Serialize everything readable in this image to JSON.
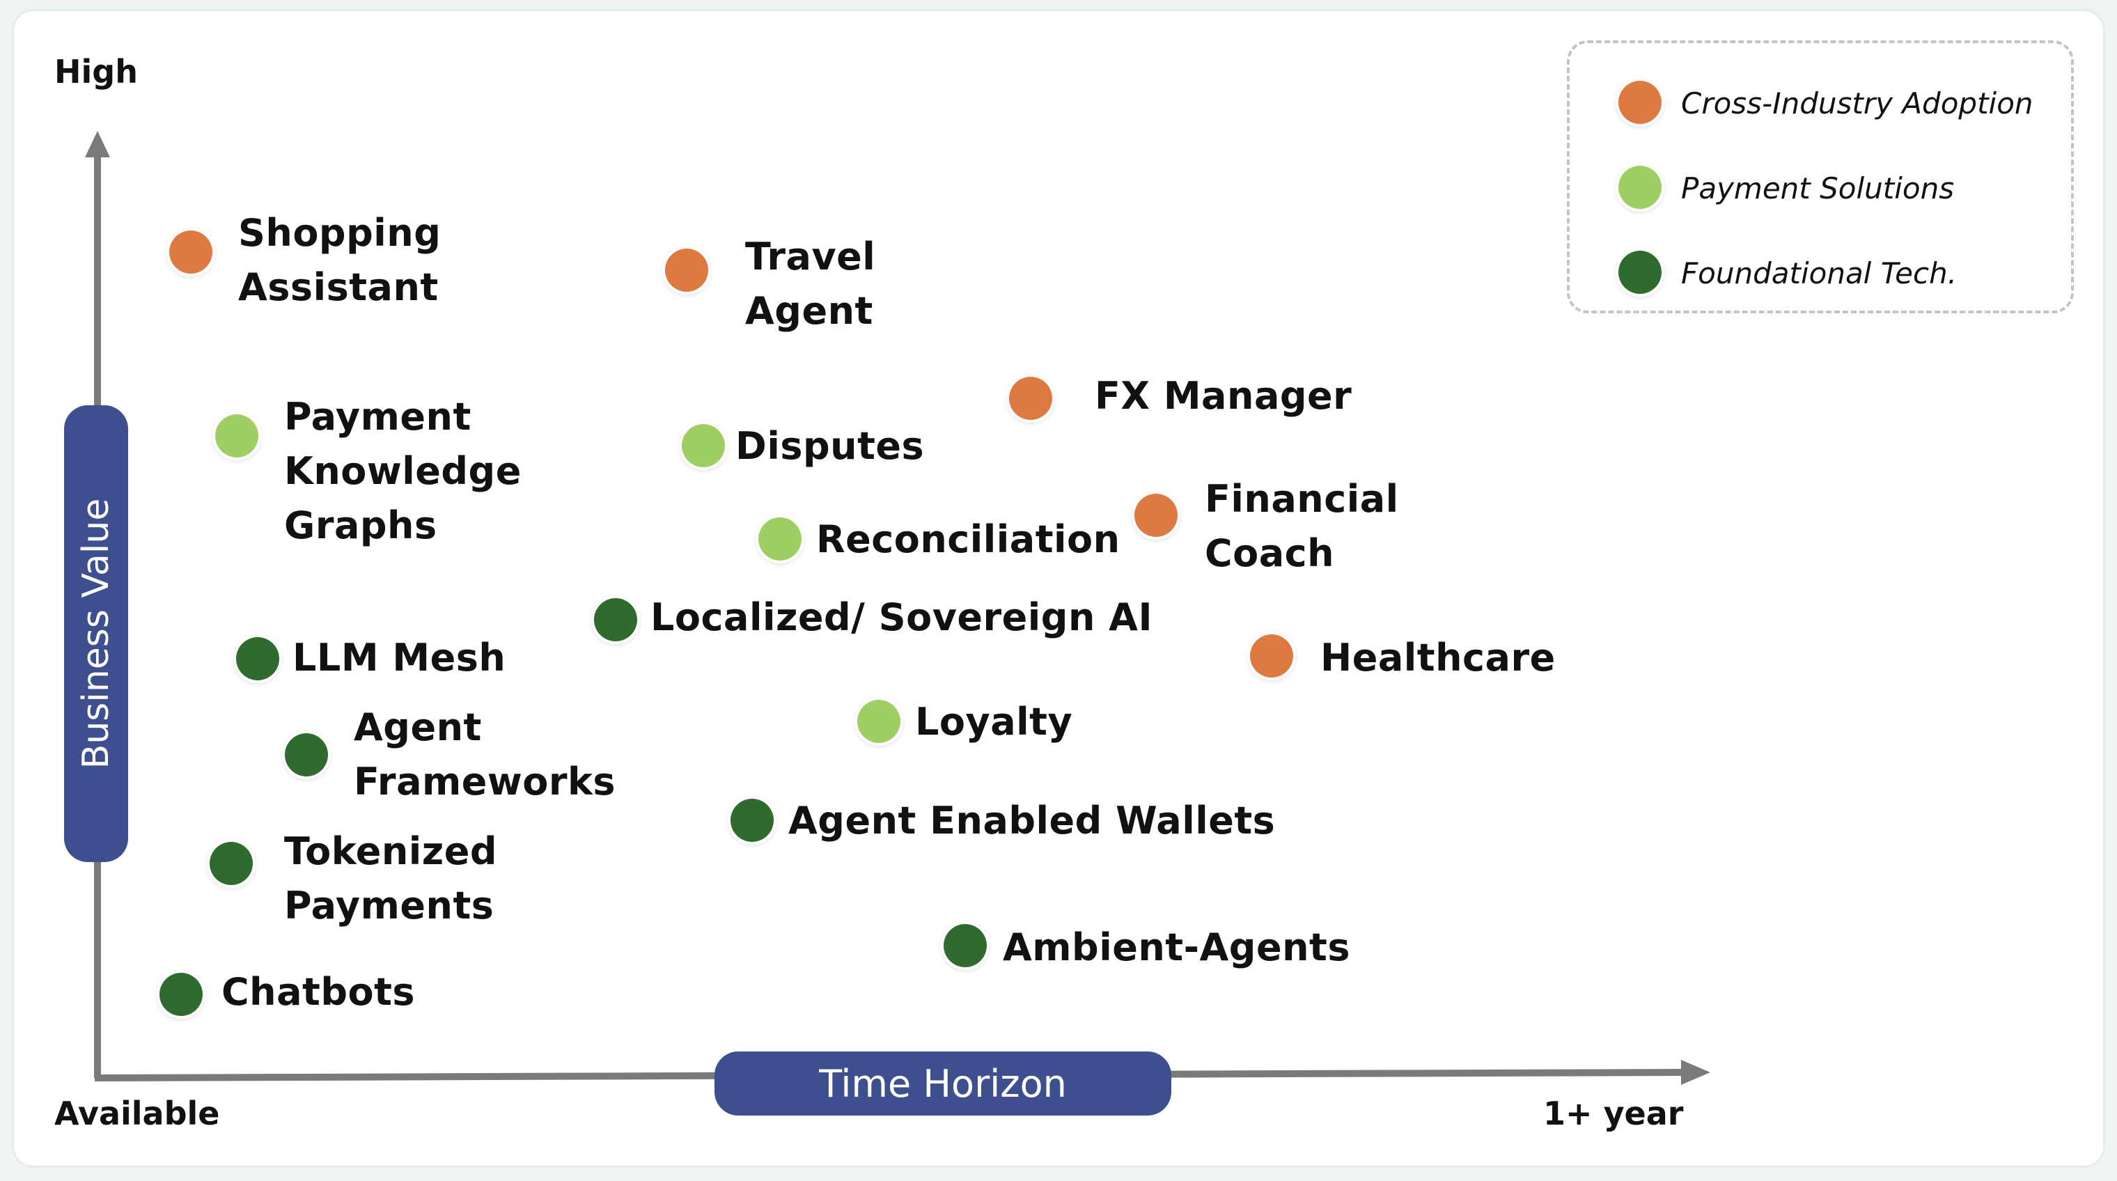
{
  "corner_labels": {
    "high": "High",
    "available": "Available",
    "one_year": "1+ year"
  },
  "axes": {
    "y_title": "Business Value",
    "x_title": "Time Horizon"
  },
  "legend": [
    {
      "name": "Cross-Industry Adoption",
      "color": "#de7a41"
    },
    {
      "name": "Payment Solutions",
      "color": "#9fcf62"
    },
    {
      "name": "Foundational Tech.",
      "color": "#2f6a2e"
    }
  ],
  "items": [
    {
      "label": "Shopping\nAssistant",
      "category": "Cross-Industry Adoption"
    },
    {
      "label": "Travel\nAgent",
      "category": "Cross-Industry Adoption"
    },
    {
      "label": "FX Manager",
      "category": "Cross-Industry Adoption"
    },
    {
      "label": "Financial\nCoach",
      "category": "Cross-Industry Adoption"
    },
    {
      "label": "Healthcare",
      "category": "Cross-Industry Adoption"
    },
    {
      "label": "Payment\nKnowledge\nGraphs",
      "category": "Payment Solutions"
    },
    {
      "label": "Disputes",
      "category": "Payment Solutions"
    },
    {
      "label": "Reconciliation",
      "category": "Payment Solutions"
    },
    {
      "label": "Loyalty",
      "category": "Payment Solutions"
    },
    {
      "label": "Localized/ Sovereign AI",
      "category": "Foundational Tech."
    },
    {
      "label": "LLM Mesh",
      "category": "Foundational Tech."
    },
    {
      "label": "Agent\nFrameworks",
      "category": "Foundational Tech."
    },
    {
      "label": "Tokenized\nPayments",
      "category": "Foundational Tech."
    },
    {
      "label": "Agent Enabled Wallets",
      "category": "Foundational Tech."
    },
    {
      "label": "Ambient-Agents",
      "category": "Foundational Tech."
    },
    {
      "label": "Chatbots",
      "category": "Foundational Tech."
    }
  ]
}
